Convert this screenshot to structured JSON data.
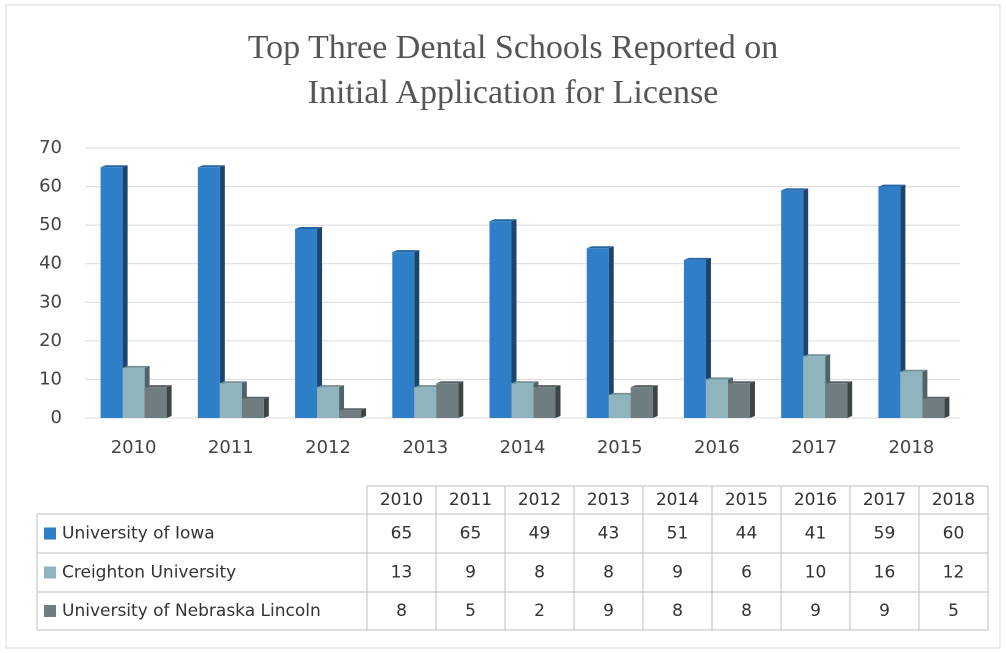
{
  "chart_data": {
    "type": "bar",
    "title": [
      "Top Three Dental Schools Reported on",
      "Initial Application for License"
    ],
    "categories": [
      "2010",
      "2011",
      "2012",
      "2013",
      "2014",
      "2015",
      "2016",
      "2017",
      "2018"
    ],
    "series": [
      {
        "name": "University of Iowa",
        "color": "#2e7ec8",
        "values": [
          65,
          65,
          49,
          43,
          51,
          44,
          41,
          59,
          60
        ]
      },
      {
        "name": "Creighton University",
        "color": "#8fb4bd",
        "values": [
          13,
          9,
          8,
          8,
          9,
          6,
          10,
          16,
          12
        ]
      },
      {
        "name": "University of Nebraska Lincoln",
        "color": "#6f7c80",
        "values": [
          8,
          5,
          2,
          9,
          8,
          8,
          9,
          9,
          5
        ]
      }
    ],
    "ylim": [
      0,
      70
    ],
    "yticks": [
      0,
      10,
      20,
      30,
      40,
      50,
      60,
      70
    ],
    "grid": true
  }
}
